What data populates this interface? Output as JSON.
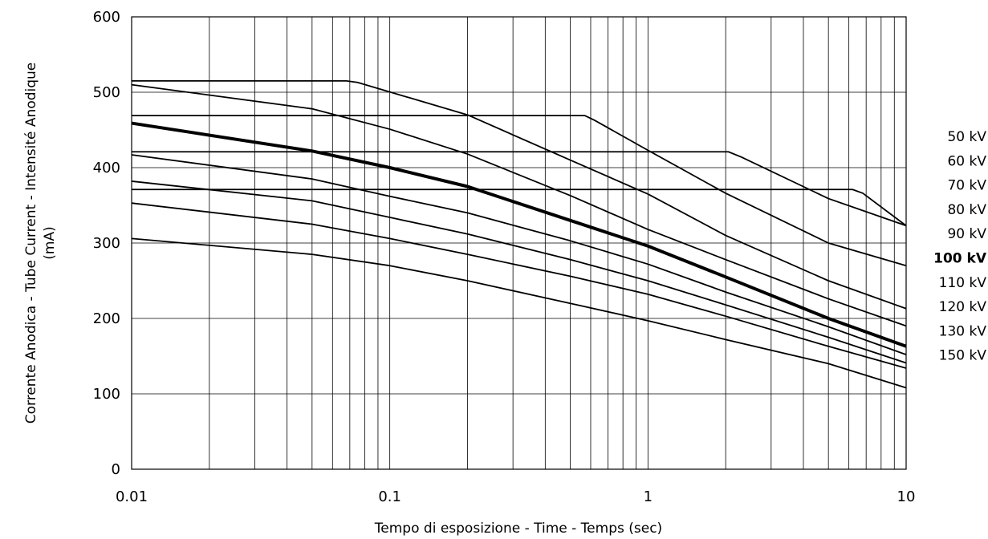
{
  "chart_data": {
    "type": "line",
    "xscale": "log",
    "xlim": [
      0.01,
      10
    ],
    "ylim": [
      0,
      600
    ],
    "xticks": [
      0.01,
      0.1,
      1,
      10
    ],
    "xtick_labels": [
      "0.01",
      "0.1",
      "1",
      "10"
    ],
    "yticks": [
      0,
      100,
      200,
      300,
      400,
      500,
      600
    ],
    "ytick_labels": [
      "0",
      "100",
      "200",
      "300",
      "400",
      "500",
      "600"
    ],
    "xlabel": "Tempo di esposizione - Time - Temps  (sec)",
    "ylabel": "Corrente Anodica - Tube Current - Intensité Anodique",
    "ylabel_unit": "(mA)",
    "grid": true,
    "legend_placement": "right",
    "legend_labels": [
      "50 kV",
      "60 kV",
      "70 kV",
      "80 kV",
      "90 kV",
      "100 kV",
      "110 kV",
      "120 kV",
      "130 kV",
      "150 kV"
    ],
    "highlighted_legend": "100 kV",
    "series": [
      {
        "x": [
          0.01,
          0.068,
          0.075,
          0.2,
          0.5,
          1,
          2,
          5,
          10
        ],
        "y": [
          515,
          515,
          513,
          470,
          410,
          365,
          310,
          250,
          213
        ]
      },
      {
        "x": [
          0.01,
          0.05,
          0.1,
          0.2,
          0.5,
          1,
          2,
          5,
          10
        ],
        "y": [
          510,
          478,
          451,
          418,
          363,
          318,
          278,
          226,
          190
        ]
      },
      {
        "x": [
          0.01,
          0.57,
          0.62,
          1,
          2,
          5,
          10
        ],
        "y": [
          469,
          469,
          463,
          423,
          366,
          300,
          270
        ]
      },
      {
        "x": [
          0.01,
          0.05,
          0.1,
          0.2,
          0.5,
          1,
          2,
          5,
          10
        ],
        "y": [
          459,
          422,
          400,
          375,
          330,
          296,
          255,
          200,
          163
        ],
        "emphasis": "bold"
      },
      {
        "x": [
          0.01,
          2.05,
          2.3,
          5,
          10
        ],
        "y": [
          421,
          421,
          414,
          359,
          323
        ]
      },
      {
        "x": [
          0.01,
          0.05,
          0.1,
          0.2,
          0.5,
          1,
          2,
          5,
          10
        ],
        "y": [
          417,
          385,
          362,
          340,
          303,
          272,
          235,
          189,
          152
        ]
      },
      {
        "x": [
          0.01,
          6.2,
          6.8,
          10
        ],
        "y": [
          371,
          371,
          366,
          323
        ]
      },
      {
        "x": [
          0.01,
          0.05,
          0.1,
          0.2,
          0.5,
          1,
          2,
          5,
          10
        ],
        "y": [
          382,
          356,
          334,
          312,
          278,
          250,
          218,
          175,
          141
        ]
      },
      {
        "x": [
          0.01,
          0.05,
          0.1,
          0.2,
          0.5,
          1,
          2,
          5,
          10
        ],
        "y": [
          353,
          325,
          306,
          285,
          256,
          232,
          203,
          163,
          134
        ]
      },
      {
        "x": [
          0.01,
          0.05,
          0.1,
          0.2,
          0.5,
          1,
          2,
          5,
          10
        ],
        "y": [
          306,
          285,
          270,
          250,
          220,
          197,
          172,
          140,
          108
        ]
      }
    ]
  }
}
